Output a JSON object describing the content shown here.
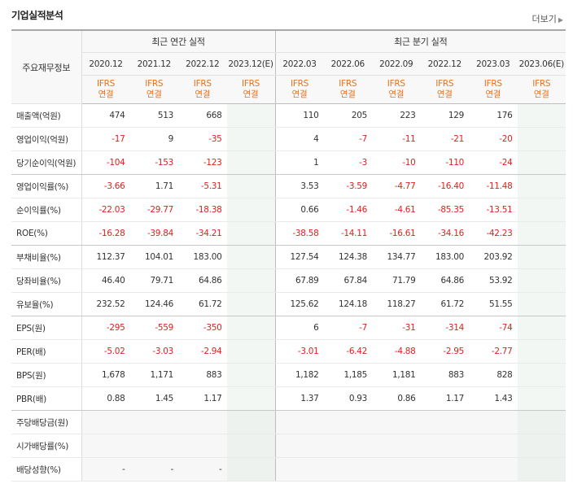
{
  "section_title": "기업실적분석",
  "more_label": "더보기",
  "header": {
    "row_label": "주요재무정보",
    "annual_group": "최근 연간 실적",
    "quarter_group": "최근 분기 실적",
    "annual_periods": [
      "2020.12",
      "2021.12",
      "2022.12",
      "2023.12(E)"
    ],
    "quarter_periods": [
      "2022.03",
      "2022.06",
      "2022.09",
      "2022.12",
      "2023.03",
      "2023.06(E)"
    ],
    "standard_top": "IFRS",
    "standard_bottom": "연결"
  },
  "rows": [
    {
      "label": "매출액(억원)",
      "annual": [
        "474",
        "513",
        "668",
        ""
      ],
      "quarter": [
        "110",
        "205",
        "223",
        "129",
        "176",
        ""
      ]
    },
    {
      "label": "영업이익(억원)",
      "annual": [
        "-17",
        "9",
        "-35",
        ""
      ],
      "quarter": [
        "4",
        "-7",
        "-11",
        "-21",
        "-20",
        ""
      ]
    },
    {
      "label": "당기순이익(억원)",
      "annual": [
        "-104",
        "-153",
        "-123",
        ""
      ],
      "quarter": [
        "1",
        "-3",
        "-10",
        "-110",
        "-24",
        ""
      ]
    },
    {
      "label": "영업이익률(%)",
      "annual": [
        "-3.66",
        "1.71",
        "-5.31",
        ""
      ],
      "quarter": [
        "3.53",
        "-3.59",
        "-4.77",
        "-16.40",
        "-11.48",
        ""
      ]
    },
    {
      "label": "순이익률(%)",
      "annual": [
        "-22.03",
        "-29.77",
        "-18.38",
        ""
      ],
      "quarter": [
        "0.66",
        "-1.46",
        "-4.61",
        "-85.35",
        "-13.51",
        ""
      ]
    },
    {
      "label": "ROE(%)",
      "annual": [
        "-16.28",
        "-39.84",
        "-34.21",
        ""
      ],
      "quarter": [
        "-38.58",
        "-14.11",
        "-16.61",
        "-34.16",
        "-42.23",
        ""
      ]
    },
    {
      "label": "부채비율(%)",
      "annual": [
        "112.37",
        "104.01",
        "183.00",
        ""
      ],
      "quarter": [
        "127.54",
        "124.38",
        "134.77",
        "183.00",
        "203.92",
        ""
      ]
    },
    {
      "label": "당좌비율(%)",
      "annual": [
        "46.40",
        "79.71",
        "64.86",
        ""
      ],
      "quarter": [
        "67.89",
        "67.84",
        "71.79",
        "64.86",
        "53.92",
        ""
      ]
    },
    {
      "label": "유보율(%)",
      "annual": [
        "232.52",
        "124.46",
        "61.72",
        ""
      ],
      "quarter": [
        "125.62",
        "124.18",
        "118.27",
        "61.72",
        "51.55",
        ""
      ]
    },
    {
      "label": "EPS(원)",
      "annual": [
        "-295",
        "-559",
        "-350",
        ""
      ],
      "quarter": [
        "6",
        "-7",
        "-31",
        "-314",
        "-74",
        ""
      ]
    },
    {
      "label": "PER(배)",
      "annual": [
        "-5.02",
        "-3.03",
        "-2.94",
        ""
      ],
      "quarter": [
        "-3.01",
        "-6.42",
        "-4.88",
        "-2.95",
        "-2.77",
        ""
      ]
    },
    {
      "label": "BPS(원)",
      "annual": [
        "1,678",
        "1,171",
        "883",
        ""
      ],
      "quarter": [
        "1,182",
        "1,185",
        "1,181",
        "883",
        "828",
        ""
      ]
    },
    {
      "label": "PBR(배)",
      "annual": [
        "0.88",
        "1.45",
        "1.17",
        ""
      ],
      "quarter": [
        "1.37",
        "0.93",
        "0.86",
        "1.17",
        "1.43",
        ""
      ]
    },
    {
      "label": "주당배당금(원)",
      "annual": [
        "",
        "",
        "",
        ""
      ],
      "quarter": [
        "",
        "",
        "",
        "",
        "",
        ""
      ]
    },
    {
      "label": "시가배당률(%)",
      "annual": [
        "",
        "",
        "",
        ""
      ],
      "quarter": [
        "",
        "",
        "",
        "",
        "",
        ""
      ]
    },
    {
      "label": "배당성향(%)",
      "annual": [
        "-",
        "-",
        "-",
        ""
      ],
      "quarter": [
        "",
        "",
        "",
        "",
        "",
        ""
      ]
    }
  ]
}
